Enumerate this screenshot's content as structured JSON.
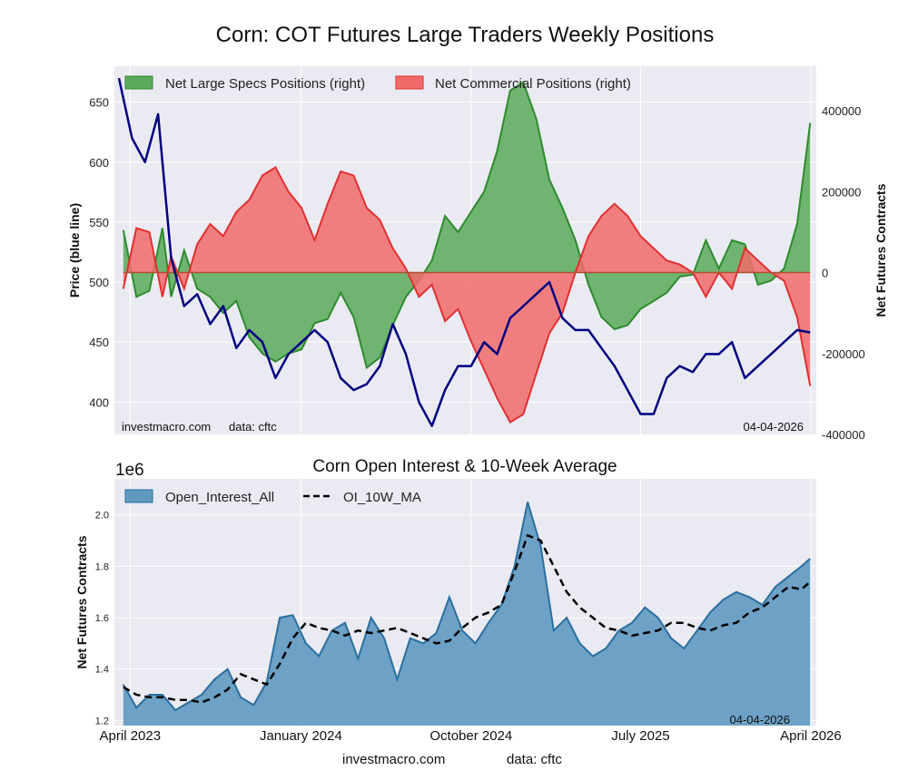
{
  "title": "Corn: COT Futures Large Traders Weekly Positions",
  "top_chart": {
    "y_left_label": "Price (blue line)",
    "y_right_label": "Net Futures Contracts",
    "y_left_ticks": [
      "400",
      "450",
      "500",
      "550",
      "600",
      "650"
    ],
    "y_right_ticks": [
      "-400000",
      "-200000",
      "0",
      "200000",
      "400000"
    ],
    "legend_specs": "Net Large Specs Positions (right)",
    "legend_comm": "Net Commercial Positions (right)",
    "credit_site": "investmacro.com",
    "credit_data": "data: cftc",
    "date_stamp": "04-04-2026"
  },
  "bottom_chart": {
    "title": "Corn Open Interest & 10-Week Average",
    "ylabel": "Net Futures Contracts",
    "scale_label": "1e6",
    "y_ticks": [
      "1.2",
      "1.4",
      "1.6",
      "1.8",
      "2.0"
    ],
    "legend_oi": "Open_Interest_All",
    "legend_ma": "OI_10W_MA",
    "date_stamp": "04-04-2026"
  },
  "x_ticks": [
    "April 2023",
    "January 2024",
    "October 2024",
    "July 2025",
    "April 2026"
  ],
  "footer_site": "investmacro.com",
  "footer_data": "data: cftc",
  "colors": {
    "specs_fill": "#5aaa5a",
    "specs_line": "#2e8b2e",
    "comm_fill": "#f26b6b",
    "comm_line": "#e03030",
    "price_line": "#000080",
    "oi_fill": "#5f99c0",
    "oi_line": "#2a6f9e",
    "ma_line": "#000000",
    "plot_bg": "#eaeaf2"
  },
  "chart_data": [
    {
      "type": "line",
      "title": "Corn: COT Futures Large Traders Weekly Positions",
      "ylabel": "Price (blue line)",
      "y2label": "Net Futures Contracts",
      "x_range": [
        "2023-03-14",
        "2026-04-04"
      ],
      "ylim": [
        373,
        680
      ],
      "y2lim": [
        -400000,
        510000
      ],
      "legend": "top-left",
      "grid": true,
      "series": [
        {
          "name": "Net Large Specs Positions (right)",
          "axis": "right",
          "x": [
            "2023-03-21",
            "2023-04-11",
            "2023-05-02",
            "2023-05-23",
            "2023-06-06",
            "2023-06-27",
            "2023-07-18",
            "2023-08-08",
            "2023-08-29",
            "2023-09-19",
            "2023-10-10",
            "2023-10-31",
            "2023-11-21",
            "2023-12-12",
            "2024-01-02",
            "2024-01-23",
            "2024-02-13",
            "2024-03-05",
            "2024-03-26",
            "2024-04-16",
            "2024-05-07",
            "2024-05-28",
            "2024-06-18",
            "2024-07-09",
            "2024-07-30",
            "2024-08-20",
            "2024-09-10",
            "2024-10-01",
            "2024-10-22",
            "2024-11-12",
            "2024-12-03",
            "2024-12-24",
            "2025-01-14",
            "2025-02-04",
            "2025-02-25",
            "2025-03-18",
            "2025-04-08",
            "2025-04-29",
            "2025-05-20",
            "2025-06-10",
            "2025-07-01",
            "2025-07-22",
            "2025-08-12",
            "2025-09-02",
            "2025-09-23",
            "2025-10-14",
            "2025-11-04",
            "2025-11-25",
            "2025-12-16",
            "2026-01-06",
            "2026-01-27",
            "2026-02-17",
            "2026-03-10",
            "2026-03-31"
          ],
          "y": [
            105000,
            -60000,
            -45000,
            110000,
            -60000,
            55000,
            -40000,
            -60000,
            -100000,
            -70000,
            -160000,
            -200000,
            -220000,
            -200000,
            -190000,
            -125000,
            -115000,
            -50000,
            -110000,
            -235000,
            -210000,
            -130000,
            -60000,
            -20000,
            30000,
            140000,
            100000,
            150000,
            200000,
            300000,
            450000,
            470000,
            380000,
            230000,
            160000,
            80000,
            -30000,
            -110000,
            -140000,
            -130000,
            -90000,
            -70000,
            -50000,
            -10000,
            -5000,
            80000,
            10000,
            80000,
            70000,
            -30000,
            -20000,
            10000,
            120000,
            370000
          ]
        },
        {
          "name": "Net Commercial Positions (right)",
          "axis": "right",
          "x": [
            "2023-03-21",
            "2023-04-11",
            "2023-05-02",
            "2023-05-23",
            "2023-06-06",
            "2023-06-27",
            "2023-07-18",
            "2023-08-08",
            "2023-08-29",
            "2023-09-19",
            "2023-10-10",
            "2023-10-31",
            "2023-11-21",
            "2023-12-12",
            "2024-01-02",
            "2024-01-23",
            "2024-02-13",
            "2024-03-05",
            "2024-03-26",
            "2024-04-16",
            "2024-05-07",
            "2024-05-28",
            "2024-06-18",
            "2024-07-09",
            "2024-07-30",
            "2024-08-20",
            "2024-09-10",
            "2024-10-01",
            "2024-10-22",
            "2024-11-12",
            "2024-12-03",
            "2024-12-24",
            "2025-01-14",
            "2025-02-04",
            "2025-02-25",
            "2025-03-18",
            "2025-04-08",
            "2025-04-29",
            "2025-05-20",
            "2025-06-10",
            "2025-07-01",
            "2025-07-22",
            "2025-08-12",
            "2025-09-02",
            "2025-09-23",
            "2025-10-14",
            "2025-11-04",
            "2025-11-25",
            "2025-12-16",
            "2026-01-06",
            "2026-01-27",
            "2026-02-17",
            "2026-03-10",
            "2026-03-31"
          ],
          "y": [
            -40000,
            110000,
            100000,
            -60000,
            40000,
            -40000,
            70000,
            120000,
            90000,
            150000,
            180000,
            240000,
            260000,
            200000,
            160000,
            80000,
            170000,
            250000,
            240000,
            160000,
            130000,
            60000,
            10000,
            -60000,
            -30000,
            -120000,
            -90000,
            -170000,
            -240000,
            -310000,
            -370000,
            -350000,
            -250000,
            -150000,
            -100000,
            0,
            90000,
            140000,
            170000,
            140000,
            90000,
            60000,
            30000,
            20000,
            0,
            -60000,
            0,
            -40000,
            60000,
            30000,
            0,
            -20000,
            -110000,
            -280000
          ]
        },
        {
          "name": "Price",
          "axis": "left",
          "x": [
            "2023-03-14",
            "2023-04-04",
            "2023-04-25",
            "2023-05-16",
            "2023-06-06",
            "2023-06-27",
            "2023-07-18",
            "2023-08-08",
            "2023-08-29",
            "2023-09-19",
            "2023-10-10",
            "2023-10-31",
            "2023-11-21",
            "2023-12-12",
            "2024-01-02",
            "2024-01-23",
            "2024-02-13",
            "2024-03-05",
            "2024-03-26",
            "2024-04-16",
            "2024-05-07",
            "2024-05-28",
            "2024-06-18",
            "2024-07-09",
            "2024-07-30",
            "2024-08-20",
            "2024-09-10",
            "2024-10-01",
            "2024-10-22",
            "2024-11-12",
            "2024-12-03",
            "2024-12-24",
            "2025-01-14",
            "2025-02-04",
            "2025-02-25",
            "2025-03-18",
            "2025-04-08",
            "2025-04-29",
            "2025-05-20",
            "2025-06-10",
            "2025-07-01",
            "2025-07-22",
            "2025-08-12",
            "2025-09-02",
            "2025-09-23",
            "2025-10-14",
            "2025-11-04",
            "2025-11-25",
            "2025-12-16",
            "2026-01-06",
            "2026-01-27",
            "2026-02-17",
            "2026-03-10",
            "2026-03-31"
          ],
          "y": [
            670,
            620,
            600,
            640,
            520,
            480,
            490,
            465,
            480,
            445,
            460,
            450,
            420,
            440,
            450,
            460,
            450,
            420,
            410,
            415,
            430,
            465,
            440,
            400,
            380,
            410,
            430,
            430,
            450,
            440,
            470,
            480,
            490,
            500,
            470,
            460,
            460,
            445,
            430,
            410,
            390,
            390,
            420,
            430,
            425,
            440,
            440,
            450,
            420,
            430,
            440,
            450,
            460,
            458
          ]
        }
      ]
    },
    {
      "type": "area",
      "title": "Corn Open Interest & 10-Week Average",
      "ylabel": "Net Futures Contracts",
      "x_range": [
        "2023-03-14",
        "2026-04-04"
      ],
      "ylim": [
        1.18,
        2.14
      ],
      "y_scale_factor": "1e6",
      "legend": "top-left",
      "grid": true,
      "series": [
        {
          "name": "Open_Interest_All",
          "x": [
            "2023-03-21",
            "2023-04-11",
            "2023-05-02",
            "2023-05-23",
            "2023-06-13",
            "2023-07-04",
            "2023-07-25",
            "2023-08-15",
            "2023-09-05",
            "2023-09-26",
            "2023-10-17",
            "2023-11-07",
            "2023-11-28",
            "2023-12-19",
            "2024-01-09",
            "2024-01-30",
            "2024-02-20",
            "2024-03-12",
            "2024-04-02",
            "2024-04-23",
            "2024-05-14",
            "2024-06-04",
            "2024-06-25",
            "2024-07-16",
            "2024-08-06",
            "2024-08-27",
            "2024-09-17",
            "2024-10-08",
            "2024-10-29",
            "2024-11-19",
            "2024-12-10",
            "2024-12-31",
            "2025-01-21",
            "2025-02-11",
            "2025-03-04",
            "2025-03-25",
            "2025-04-15",
            "2025-05-06",
            "2025-05-27",
            "2025-06-17",
            "2025-07-08",
            "2025-07-29",
            "2025-08-19",
            "2025-09-09",
            "2025-09-30",
            "2025-10-21",
            "2025-11-11",
            "2025-12-02",
            "2025-12-23",
            "2026-01-13",
            "2026-02-03",
            "2026-02-24",
            "2026-03-17",
            "2026-03-31"
          ],
          "y": [
            1.34,
            1.25,
            1.3,
            1.3,
            1.24,
            1.27,
            1.3,
            1.36,
            1.4,
            1.29,
            1.26,
            1.35,
            1.6,
            1.61,
            1.5,
            1.45,
            1.55,
            1.58,
            1.44,
            1.6,
            1.52,
            1.36,
            1.52,
            1.5,
            1.54,
            1.68,
            1.55,
            1.5,
            1.58,
            1.65,
            1.8,
            2.05,
            1.88,
            1.55,
            1.6,
            1.5,
            1.45,
            1.48,
            1.55,
            1.58,
            1.64,
            1.6,
            1.52,
            1.48,
            1.55,
            1.62,
            1.67,
            1.7,
            1.68,
            1.65,
            1.72,
            1.76,
            1.8,
            1.83
          ]
        },
        {
          "name": "OI_10W_MA",
          "x": [
            "2023-03-21",
            "2023-04-11",
            "2023-05-02",
            "2023-05-23",
            "2023-06-13",
            "2023-07-04",
            "2023-07-25",
            "2023-08-15",
            "2023-09-05",
            "2023-09-26",
            "2023-10-17",
            "2023-11-07",
            "2023-11-28",
            "2023-12-19",
            "2024-01-09",
            "2024-01-30",
            "2024-02-20",
            "2024-03-12",
            "2024-04-02",
            "2024-04-23",
            "2024-05-14",
            "2024-06-04",
            "2024-06-25",
            "2024-07-16",
            "2024-08-06",
            "2024-08-27",
            "2024-09-17",
            "2024-10-08",
            "2024-10-29",
            "2024-11-19",
            "2024-12-10",
            "2024-12-31",
            "2025-01-21",
            "2025-02-11",
            "2025-03-04",
            "2025-03-25",
            "2025-04-15",
            "2025-05-06",
            "2025-05-27",
            "2025-06-17",
            "2025-07-08",
            "2025-07-29",
            "2025-08-19",
            "2025-09-09",
            "2025-09-30",
            "2025-10-21",
            "2025-11-11",
            "2025-12-02",
            "2025-12-23",
            "2026-01-13",
            "2026-02-03",
            "2026-02-24",
            "2026-03-17",
            "2026-03-31"
          ],
          "y": [
            1.33,
            1.3,
            1.29,
            1.29,
            1.28,
            1.28,
            1.27,
            1.29,
            1.32,
            1.38,
            1.36,
            1.34,
            1.42,
            1.52,
            1.58,
            1.56,
            1.55,
            1.53,
            1.55,
            1.54,
            1.55,
            1.56,
            1.54,
            1.52,
            1.5,
            1.51,
            1.56,
            1.6,
            1.62,
            1.65,
            1.78,
            1.92,
            1.9,
            1.8,
            1.7,
            1.64,
            1.6,
            1.56,
            1.55,
            1.53,
            1.54,
            1.55,
            1.58,
            1.58,
            1.56,
            1.55,
            1.57,
            1.58,
            1.62,
            1.64,
            1.68,
            1.72,
            1.71,
            1.74
          ]
        }
      ]
    }
  ]
}
